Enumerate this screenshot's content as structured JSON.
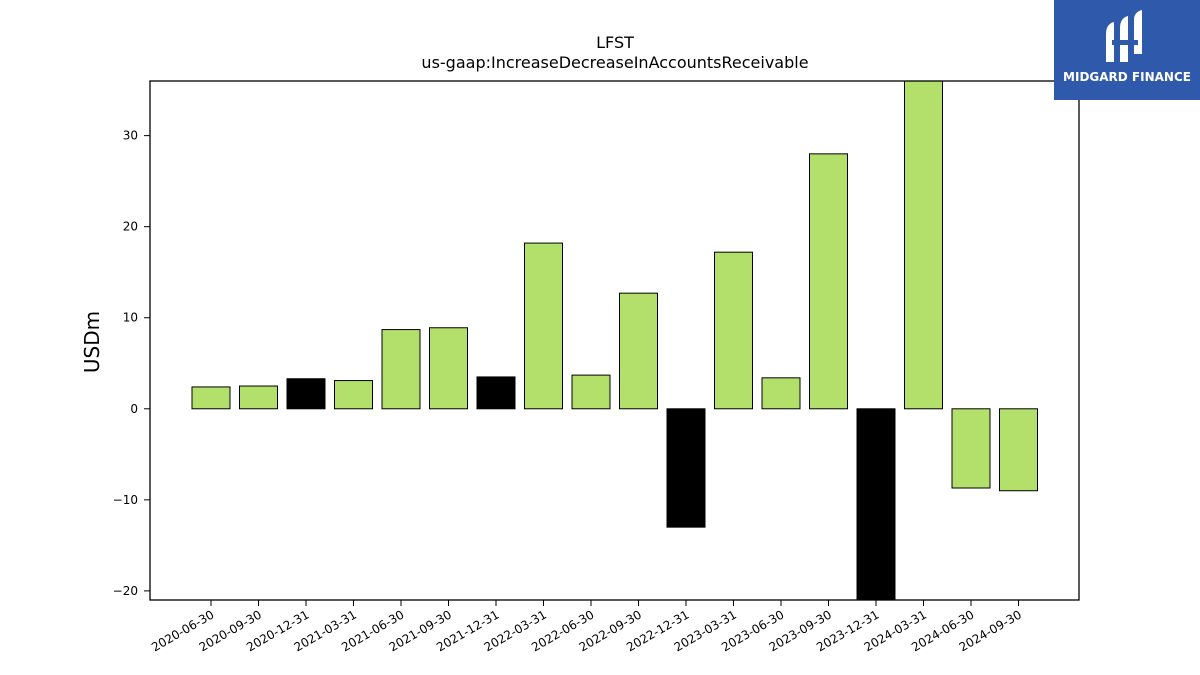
{
  "chart_data": {
    "type": "bar",
    "title": "LFST",
    "subtitle": "us-gaap:IncreaseDecreaseInAccountsReceivable",
    "xlabel": "",
    "ylabel": "USDm",
    "ylim": [
      -21,
      36
    ],
    "yticks": [
      -20,
      -10,
      0,
      10,
      20,
      30
    ],
    "grid": false,
    "categories": [
      "2020-06-30",
      "2020-09-30",
      "2020-12-31",
      "2021-03-31",
      "2021-06-30",
      "2021-09-30",
      "2021-12-31",
      "2022-03-31",
      "2022-06-30",
      "2022-09-30",
      "2022-12-31",
      "2023-03-31",
      "2023-06-30",
      "2023-09-30",
      "2023-12-31",
      "2024-03-31",
      "2024-06-30",
      "2024-09-30"
    ],
    "values": [
      2.4,
      2.5,
      3.3,
      3.1,
      8.7,
      8.9,
      3.5,
      18.2,
      3.7,
      12.7,
      -13.0,
      17.2,
      3.4,
      28.0,
      -21.5,
      36.5,
      -8.7,
      -9.0
    ],
    "bar_colors": [
      "#b3df6b",
      "#b3df6b",
      "#000000",
      "#b3df6b",
      "#b3df6b",
      "#b3df6b",
      "#000000",
      "#b3df6b",
      "#b3df6b",
      "#b3df6b",
      "#000000",
      "#b3df6b",
      "#b3df6b",
      "#b3df6b",
      "#000000",
      "#b3df6b",
      "#b3df6b",
      "#b3df6b"
    ]
  },
  "logo": {
    "text": "MIDGARD FINANCE",
    "background": "#2f5aab"
  }
}
